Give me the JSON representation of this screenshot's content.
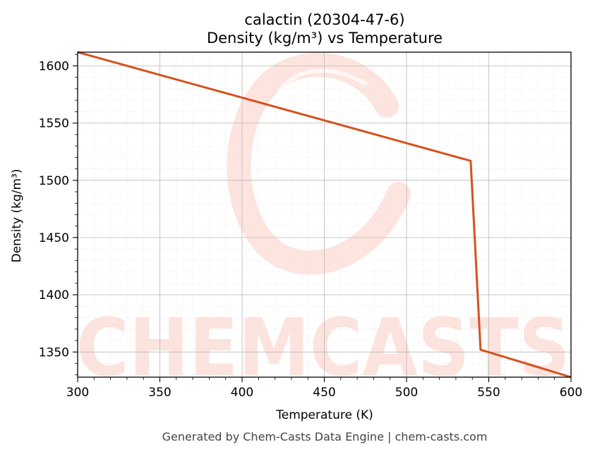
{
  "chart_data": {
    "type": "line",
    "title": "calactin (20304-47-6)",
    "subtitle": "Density (kg/m³) vs Temperature",
    "xlabel": "Temperature (K)",
    "ylabel": "Density (kg/m³)",
    "xlim": [
      300,
      600
    ],
    "ylim": [
      1328,
      1612
    ],
    "xticks": [
      300,
      350,
      400,
      450,
      500,
      550,
      600
    ],
    "yticks": [
      1350,
      1400,
      1450,
      1500,
      1550,
      1600
    ],
    "grid": true,
    "series": [
      {
        "color": "#d4521e",
        "x": [
          300,
          539,
          545,
          600
        ],
        "y": [
          1612,
          1517,
          1352,
          1328
        ]
      }
    ]
  },
  "watermark": {
    "text": "CHEMCASTS",
    "color": "#fde0da"
  },
  "footer": "Generated by Chem-Casts Data Engine | chem-casts.com"
}
